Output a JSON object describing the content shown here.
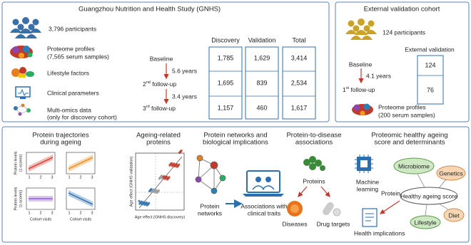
{
  "gnhs": {
    "title": "Guangzhou Nutrition and Health Study (GNHS)",
    "participants": "3,796 participants",
    "proteome": [
      "Proteome profiles",
      "(7,565 serum samples)"
    ],
    "lifestyle": "Lifestyle factors",
    "clinical": "Clinical parameters",
    "multiomics": [
      "Multi-omics data",
      "(only for discovery cohort)"
    ],
    "timeline": {
      "baseline": "Baseline",
      "gap1": "5.6 years",
      "fu2": {
        "num": "2",
        "sup": "nd",
        "text": " follow-up"
      },
      "gap2": "3.4 years",
      "fu3": {
        "num": "3",
        "sup": "rd",
        "text": " follow-up"
      }
    },
    "table": {
      "headers": [
        "Discovery",
        "Validation",
        "Total"
      ],
      "rows": [
        [
          "1,785",
          "1,629",
          "3,414"
        ],
        [
          "1,695",
          "839",
          "2,534"
        ],
        [
          "1,157",
          "460",
          "1,617"
        ]
      ]
    }
  },
  "external": {
    "title": "External validation cohort",
    "participants": "124 participants",
    "column": "External validation",
    "baseline": "Baseline",
    "gap": "4.1 years",
    "fu1": {
      "num": "1",
      "sup": "st",
      "text": " follow-up"
    },
    "values": [
      "124",
      "76"
    ],
    "proteome": [
      "Proteome profiles",
      "(200 serum samples)"
    ]
  },
  "analyses": {
    "trajectories": {
      "title": [
        "Protein trajectories",
        "during ageing"
      ],
      "ylabel": [
        "Protein levels",
        "(z-scores)"
      ],
      "xlabel": "Cohort visits",
      "ticks": [
        "1",
        "2",
        "3"
      ]
    },
    "ageing": {
      "title": [
        "Ageing-related",
        "proteins"
      ],
      "ylabel": "Age effect (GNHS validation)",
      "xlabel": "Age effect (GNHS discovery)"
    },
    "networks": {
      "title": [
        "Protein networks and",
        "biological implications"
      ],
      "networks": [
        "Protein",
        "networks"
      ],
      "associations": [
        "Associations with",
        "clinical traits"
      ]
    },
    "disease": {
      "title": [
        "Protein-to-disease",
        "associations"
      ],
      "proteins": "Proteins",
      "diseases": "Diseases",
      "drugs": "Drug targets"
    },
    "healthy": {
      "title": [
        "Proteomic healthy ageing",
        "score and determinants"
      ],
      "microbiome": "Microbiome",
      "genetics": "Genetics",
      "ml": [
        "Machine",
        "learning"
      ],
      "protein": "Protein",
      "score": "Healthy ageing score",
      "diet": "Diet",
      "lifestyle": "Lifestyle",
      "implications": "Health implications"
    }
  }
}
